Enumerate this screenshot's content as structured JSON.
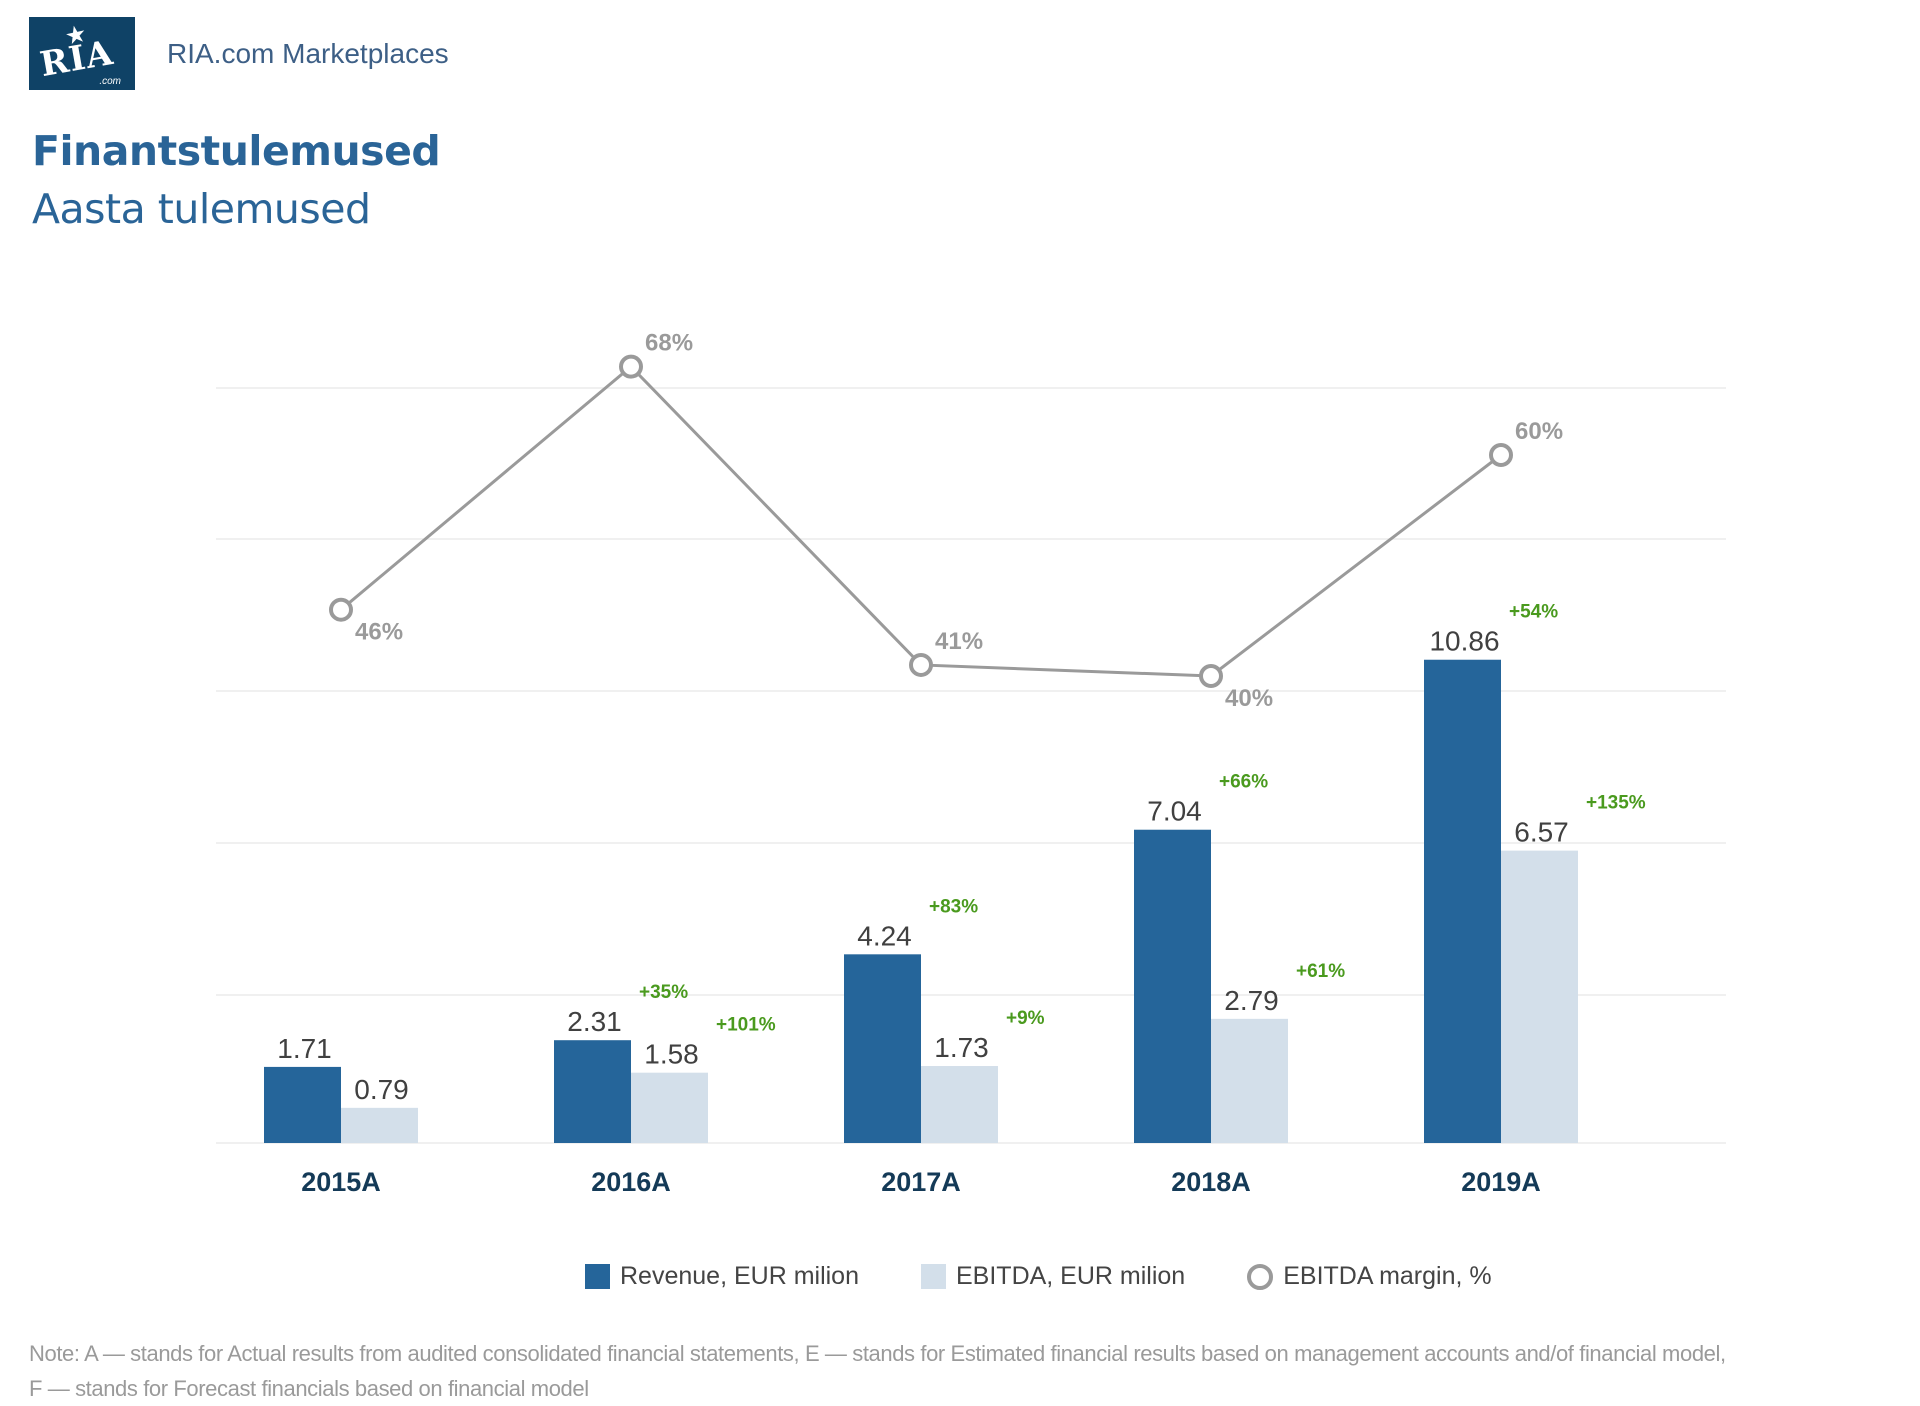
{
  "header": {
    "logo_text": "RIA",
    "logo_suffix": ".com",
    "brand": "RIA.com Marketplaces",
    "title": "Finantstulemused",
    "subtitle": "Aasta tulemused"
  },
  "colors": {
    "revenue": "#25659a",
    "ebitda": "#d3dfea",
    "margin_line": "#9a9a9a",
    "growth_label": "#4a9a1e",
    "value_label": "#404040",
    "category_label": "#143a57",
    "gridline": "#ececec",
    "brand_blue": "#2a6497",
    "logo_bg": "#0f4266"
  },
  "chart_data": {
    "type": "bar",
    "title": "Aasta tulemused",
    "xlabel": "",
    "ylabel": "",
    "categories": [
      "2015A",
      "2016A",
      "2017A",
      "2018A",
      "2019A"
    ],
    "series": [
      {
        "name": "Revenue, EUR milion",
        "type": "bar",
        "values": [
          1.71,
          2.31,
          4.24,
          7.04,
          10.86
        ],
        "growth_labels": [
          null,
          "+35%",
          "+83%",
          "+66%",
          "+54%"
        ]
      },
      {
        "name": "EBITDA, EUR milion",
        "type": "bar",
        "values": [
          0.79,
          1.58,
          1.73,
          2.79,
          6.57
        ],
        "growth_labels": [
          null,
          "+101%",
          "+9%",
          "+61%",
          "+135%"
        ]
      },
      {
        "name": "EBITDA margin, %",
        "type": "line",
        "values": [
          46,
          68,
          41,
          40,
          60
        ],
        "labels": [
          "46%",
          "68%",
          "41%",
          "40%",
          "60%"
        ]
      }
    ],
    "value_labels": {
      "revenue": [
        "1.71",
        "2.31",
        "4.24",
        "7.04",
        "10.86"
      ],
      "ebitda": [
        "0.79",
        "1.58",
        "1.73",
        "2.79",
        "6.57"
      ]
    },
    "grid": true,
    "legend_position": "bottom"
  },
  "legend": [
    {
      "label": "Revenue, EUR milion",
      "marker": "square-dark"
    },
    {
      "label": "EBITDA, EUR milion",
      "marker": "square-light"
    },
    {
      "label": "EBITDA margin, %",
      "marker": "circle-outline"
    }
  ],
  "note": {
    "line1": "Note: A — stands for Actual results from audited consolidated financial statements, E — stands for Estimated financial results based on management accounts and/of financial model,",
    "line2": "F — stands for Forecast financials based on financial model"
  }
}
